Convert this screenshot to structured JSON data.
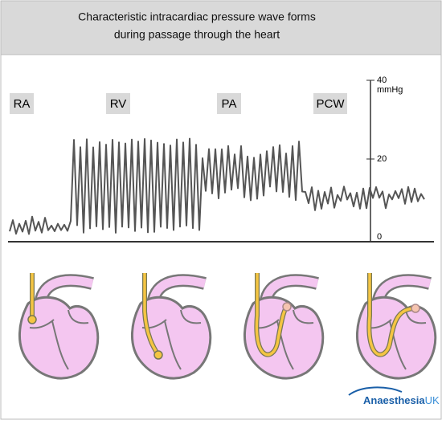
{
  "header": {
    "title_line1": "Characteristic intracardiac pressure wave forms",
    "title_line2": "during passage through the heart"
  },
  "regions": [
    "RA",
    "RV",
    "PA",
    "PCW"
  ],
  "scale": {
    "top": "40",
    "unit": "mmHg",
    "middle": "20",
    "bottom": "0"
  },
  "logo": {
    "name": "Anaesthesia",
    "suffix": "UK"
  }
}
